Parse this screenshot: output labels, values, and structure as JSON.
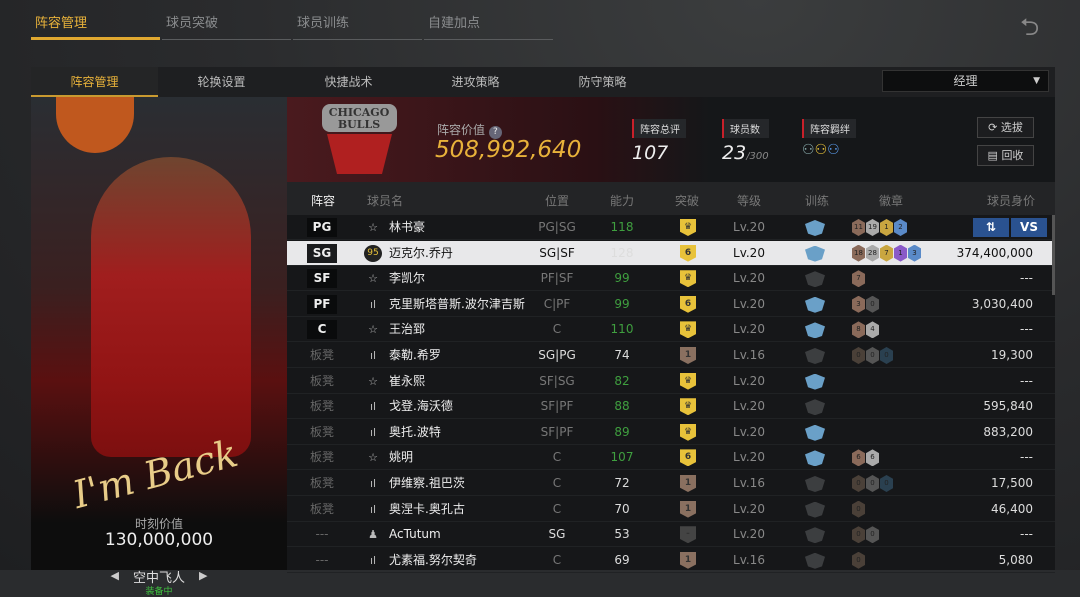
{
  "top_tabs": [
    "阵容管理",
    "球员突破",
    "球员训练",
    "自建加点"
  ],
  "sub_tabs": [
    "阵容管理",
    "轮换设置",
    "快捷战术",
    "进攻策略",
    "防守策略"
  ],
  "role_select": "经理",
  "card": {
    "signature": "I'm Back",
    "moment_value_label": "时刻价值",
    "moment_value": "130,000,000",
    "card_name": "空中飞人",
    "status": "装备中"
  },
  "team": {
    "logo_text": "CHICAGO BULLS",
    "value_label": "阵容价值",
    "value": "508,992,640",
    "rating_label": "阵容总评",
    "rating": "107",
    "count_label": "球员数",
    "count": "23",
    "count_max": "/300",
    "bond_label": "阵容羁绊",
    "select_btn": "选拔",
    "recycle_btn": "回收"
  },
  "columns": [
    "阵容",
    "球员名",
    "位置",
    "能力",
    "突破",
    "等级",
    "训练",
    "徽章",
    "球员身价"
  ],
  "actions": {
    "swap": "⇅",
    "vs": "VS"
  },
  "colors": {
    "accent": "#e8b23a",
    "green": "#3f9f3f",
    "gold": "#e8c23a",
    "bronze": "#8a7060",
    "train_on": "#6aa0c8",
    "train_off": "#3c3e40"
  },
  "rows": [
    {
      "slot": "PG",
      "icon": "star",
      "name": "林书豪",
      "pos": "PG|SG",
      "ability": "118",
      "green": true,
      "brk": "♛",
      "brk_c": "gold",
      "lv": "Lv.20",
      "train": true,
      "badges": [
        [
          "11",
          "#8a6a5a"
        ],
        [
          "19",
          "#aaa"
        ],
        [
          "1",
          "#c9a640"
        ],
        [
          "2",
          "#5a8ac8"
        ]
      ],
      "value": ""
    },
    {
      "slot": "SG",
      "icon": "95",
      "name": "迈克尔.乔丹",
      "pos": "SG|SF",
      "ability": "128",
      "green": false,
      "brk": "6",
      "brk_c": "gold",
      "lv": "Lv.20",
      "train": true,
      "badges": [
        [
          "18",
          "#8a6a5a"
        ],
        [
          "28",
          "#aaa"
        ],
        [
          "7",
          "#c9a640"
        ],
        [
          "1",
          "#8a5ac8"
        ],
        [
          "3",
          "#5a8ac8"
        ]
      ],
      "value": "374,400,000",
      "selected": true
    },
    {
      "slot": "SF",
      "icon": "star",
      "name": "李凯尔",
      "pos": "PF|SF",
      "ability": "99",
      "green": true,
      "brk": "♛",
      "brk_c": "gold",
      "lv": "Lv.20",
      "train": false,
      "badges": [
        [
          "7",
          "#8a6a5a"
        ]
      ],
      "value": "---"
    },
    {
      "slot": "PF",
      "icon": "bars",
      "name": "克里斯塔普斯.波尔津吉斯",
      "pos": "C|PF",
      "ability": "99",
      "green": true,
      "brk": "6",
      "brk_c": "gold",
      "lv": "Lv.20",
      "train": true,
      "badges": [
        [
          "3",
          "#8a6a5a"
        ],
        [
          "0",
          "#555"
        ]
      ],
      "value": "3,030,400"
    },
    {
      "slot": "C",
      "icon": "star",
      "name": "王治郅",
      "pos": "C",
      "ability": "110",
      "green": true,
      "brk": "♛",
      "brk_c": "gold",
      "lv": "Lv.20",
      "train": true,
      "badges": [
        [
          "8",
          "#8a6a5a"
        ],
        [
          "4",
          "#aaa"
        ]
      ],
      "value": "---"
    },
    {
      "slot": "板凳",
      "icon": "bars",
      "name": "泰勒.希罗",
      "pos": "SG|PG",
      "ability": "74",
      "green": false,
      "brk": "1",
      "brk_c": "bronze",
      "lv": "Lv.16",
      "train": false,
      "badges": [
        [
          "0",
          "#4a4038"
        ],
        [
          "0",
          "#555"
        ],
        [
          "0",
          "#2a4050"
        ]
      ],
      "value": "19,300"
    },
    {
      "slot": "板凳",
      "icon": "star",
      "name": "崔永熙",
      "pos": "SF|SG",
      "ability": "82",
      "green": true,
      "brk": "♛",
      "brk_c": "gold",
      "lv": "Lv.20",
      "train": true,
      "badges": [],
      "value": "---"
    },
    {
      "slot": "板凳",
      "icon": "bars",
      "name": "戈登.海沃德",
      "pos": "SF|PF",
      "ability": "88",
      "green": true,
      "brk": "♛",
      "brk_c": "gold",
      "lv": "Lv.20",
      "train": false,
      "badges": [],
      "value": "595,840"
    },
    {
      "slot": "板凳",
      "icon": "bars",
      "name": "奥托.波特",
      "pos": "SF|PF",
      "ability": "89",
      "green": true,
      "brk": "♛",
      "brk_c": "gold",
      "lv": "Lv.20",
      "train": true,
      "badges": [],
      "value": "883,200"
    },
    {
      "slot": "板凳",
      "icon": "star",
      "name": "姚明",
      "pos": "C",
      "ability": "107",
      "green": true,
      "brk": "6",
      "brk_c": "gold",
      "lv": "Lv.20",
      "train": true,
      "badges": [
        [
          "6",
          "#8a6a5a"
        ],
        [
          "6",
          "#aaa"
        ]
      ],
      "value": "---"
    },
    {
      "slot": "板凳",
      "icon": "bars",
      "name": "伊维察.祖巴茨",
      "pos": "C",
      "ability": "72",
      "green": false,
      "brk": "1",
      "brk_c": "bronze",
      "lv": "Lv.16",
      "train": false,
      "badges": [
        [
          "0",
          "#4a4038"
        ],
        [
          "0",
          "#555"
        ],
        [
          "0",
          "#2a4050"
        ]
      ],
      "value": "17,500"
    },
    {
      "slot": "板凳",
      "icon": "bars",
      "name": "奥涅卡.奥孔古",
      "pos": "C",
      "ability": "70",
      "green": false,
      "brk": "1",
      "brk_c": "bronze",
      "lv": "Lv.20",
      "train": false,
      "badges": [
        [
          "0",
          "#4a4038"
        ]
      ],
      "value": "46,400"
    },
    {
      "slot": "---",
      "icon": "person",
      "name": "AcTutum",
      "pos": "SG",
      "ability": "53",
      "green": false,
      "brk": "-",
      "brk_c": "none",
      "lv": "Lv.20",
      "train": false,
      "badges": [
        [
          "0",
          "#4a4038"
        ],
        [
          "0",
          "#555"
        ]
      ],
      "value": "---"
    },
    {
      "slot": "---",
      "icon": "bars",
      "name": "尤素福.努尔契奇",
      "pos": "C",
      "ability": "69",
      "green": false,
      "brk": "1",
      "brk_c": "bronze",
      "lv": "Lv.16",
      "train": false,
      "badges": [
        [
          "0",
          "#4a4038"
        ]
      ],
      "value": "5,080"
    }
  ]
}
